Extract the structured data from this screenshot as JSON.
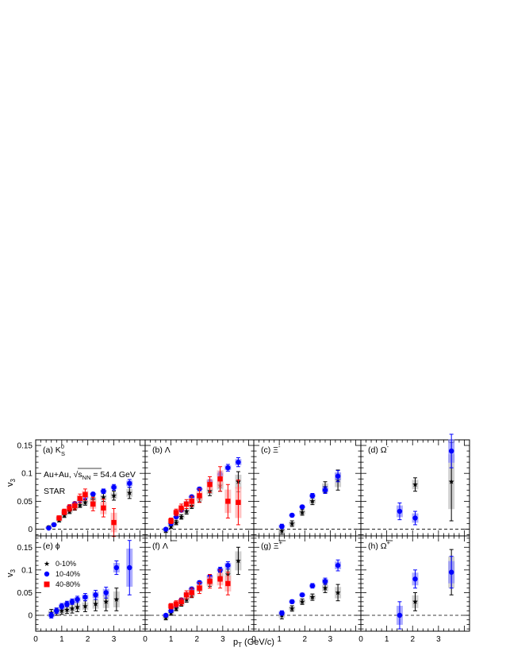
{
  "figure": {
    "yaxis_label": "v",
    "yaxis_sub": "3",
    "xaxis_label": "p",
    "xaxis_sub": "T",
    "xaxis_unit": "(GeV/c)",
    "info_line1": "Au+Au, ",
    "info_sqrt": "s",
    "info_sqrt_sub": "NN",
    "info_energy": " = 54.4 GeV",
    "info_line2": "STAR",
    "legend": [
      "0-10%",
      "10-40%",
      "40-80%"
    ]
  },
  "colors": {
    "c0_10": "#000000",
    "c10_40": "#0000ff",
    "c40_80": "#ff0000",
    "sys0_10": "#bdbdbd",
    "sys10_40": "#8c8cff",
    "sys40_80": "#ffaaaa"
  },
  "chart_data": [
    {
      "id": "a",
      "tag": "(a)",
      "particle": "K",
      "particle_sup": "0",
      "particle_sub": "S",
      "overline": false,
      "type": "scatter",
      "xlim": [
        0,
        4.2
      ],
      "ylim": [
        -0.012,
        0.16
      ],
      "series": [
        {
          "name": "0-10%",
          "x": [
            0.5,
            0.7,
            0.9,
            1.1,
            1.3,
            1.5,
            1.7,
            1.9,
            2.2,
            2.6,
            3.0,
            3.6
          ],
          "y": [
            0.003,
            0.008,
            0.016,
            0.025,
            0.032,
            0.038,
            0.043,
            0.048,
            0.053,
            0.057,
            0.06,
            0.065
          ],
          "err": [
            0.003,
            0.003,
            0.003,
            0.004,
            0.004,
            0.004,
            0.004,
            0.005,
            0.006,
            0.007,
            0.008,
            0.01
          ]
        },
        {
          "name": "10-40%",
          "x": [
            0.5,
            0.7,
            0.9,
            1.1,
            1.3,
            1.5,
            1.7,
            1.9,
            2.2,
            2.6,
            3.0,
            3.6
          ],
          "y": [
            0.002,
            0.008,
            0.02,
            0.03,
            0.04,
            0.046,
            0.052,
            0.057,
            0.063,
            0.068,
            0.075,
            0.082
          ],
          "err": [
            0.002,
            0.002,
            0.002,
            0.002,
            0.002,
            0.002,
            0.002,
            0.003,
            0.003,
            0.004,
            0.005,
            0.007
          ]
        },
        {
          "name": "40-80%",
          "x": [
            0.9,
            1.1,
            1.3,
            1.5,
            1.7,
            1.9,
            2.2,
            2.6,
            3.0
          ],
          "y": [
            0.02,
            0.031,
            0.038,
            0.042,
            0.055,
            0.062,
            0.045,
            0.038,
            0.012
          ],
          "err": [
            0.004,
            0.005,
            0.006,
            0.007,
            0.008,
            0.01,
            0.012,
            0.016,
            0.025
          ]
        }
      ]
    },
    {
      "id": "b",
      "tag": "(b)",
      "particle": "Λ",
      "particle_sup": "",
      "particle_sub": "",
      "overline": false,
      "type": "scatter",
      "xlim": [
        0,
        4.2
      ],
      "ylim": [
        -0.012,
        0.16
      ],
      "series": [
        {
          "name": "0-10%",
          "x": [
            0.8,
            1.0,
            1.2,
            1.4,
            1.6,
            1.8,
            2.1,
            2.5,
            2.9,
            3.6
          ],
          "y": [
            -0.002,
            0.005,
            0.012,
            0.022,
            0.032,
            0.042,
            0.055,
            0.068,
            0.078,
            0.085
          ],
          "err": [
            0.004,
            0.004,
            0.004,
            0.004,
            0.005,
            0.005,
            0.006,
            0.008,
            0.01,
            0.018
          ]
        },
        {
          "name": "10-40%",
          "x": [
            0.8,
            1.0,
            1.2,
            1.4,
            1.6,
            1.8,
            2.1,
            2.5,
            2.9,
            3.2,
            3.6
          ],
          "y": [
            0.0,
            0.01,
            0.022,
            0.034,
            0.046,
            0.058,
            0.072,
            0.085,
            0.098,
            0.11,
            0.12
          ],
          "err": [
            0.002,
            0.002,
            0.002,
            0.002,
            0.002,
            0.003,
            0.003,
            0.004,
            0.005,
            0.006,
            0.008
          ]
        },
        {
          "name": "40-80%",
          "x": [
            1.0,
            1.2,
            1.4,
            1.6,
            1.8,
            2.1,
            2.5,
            2.9,
            3.2,
            3.6
          ],
          "y": [
            0.015,
            0.03,
            0.038,
            0.045,
            0.05,
            0.06,
            0.08,
            0.09,
            0.05,
            0.048
          ],
          "err": [
            0.005,
            0.006,
            0.007,
            0.008,
            0.009,
            0.012,
            0.014,
            0.022,
            0.03,
            0.04
          ]
        }
      ]
    },
    {
      "id": "c",
      "tag": "(c)",
      "particle": "Ξ",
      "particle_sup": "-",
      "particle_sub": "",
      "overline": false,
      "type": "scatter",
      "xlim": [
        0,
        4.2
      ],
      "ylim": [
        -0.012,
        0.16
      ],
      "series": [
        {
          "name": "0-10%",
          "x": [
            1.1,
            1.5,
            1.9,
            2.3,
            2.8,
            3.3
          ],
          "y": [
            -0.003,
            0.01,
            0.03,
            0.05,
            0.075,
            0.088
          ],
          "err": [
            0.006,
            0.005,
            0.005,
            0.006,
            0.01,
            0.018
          ]
        },
        {
          "name": "10-40%",
          "x": [
            1.1,
            1.5,
            1.9,
            2.3,
            2.8,
            3.3
          ],
          "y": [
            0.005,
            0.025,
            0.04,
            0.06,
            0.07,
            0.095
          ],
          "err": [
            0.004,
            0.003,
            0.003,
            0.004,
            0.006,
            0.01
          ]
        }
      ]
    },
    {
      "id": "d",
      "tag": "(d)",
      "particle": "Ω",
      "particle_sup": "-",
      "particle_sub": "",
      "overline": false,
      "type": "scatter",
      "xlim": [
        0,
        4.2
      ],
      "ylim": [
        -0.012,
        0.16
      ],
      "series": [
        {
          "name": "0-10%",
          "x": [
            2.1,
            3.5
          ],
          "y": [
            0.08,
            0.085
          ],
          "err": [
            0.012,
            0.07
          ]
        },
        {
          "name": "10-40%",
          "x": [
            1.5,
            2.1,
            3.5
          ],
          "y": [
            0.032,
            0.02,
            0.14
          ],
          "err": [
            0.015,
            0.012,
            0.03
          ]
        }
      ]
    },
    {
      "id": "e",
      "tag": "(e)",
      "particle": "ϕ",
      "particle_sup": "",
      "particle_sub": "",
      "overline": false,
      "type": "scatter",
      "xlim": [
        0,
        4.2
      ],
      "ylim": [
        -0.035,
        0.175
      ],
      "series": [
        {
          "name": "0-10%",
          "x": [
            0.6,
            0.8,
            1.0,
            1.2,
            1.4,
            1.6,
            1.9,
            2.3,
            2.7,
            3.1
          ],
          "y": [
            0.005,
            0.008,
            0.01,
            0.012,
            0.015,
            0.018,
            0.02,
            0.025,
            0.03,
            0.035
          ],
          "err": [
            0.008,
            0.008,
            0.008,
            0.008,
            0.01,
            0.01,
            0.012,
            0.015,
            0.02,
            0.025
          ]
        },
        {
          "name": "10-40%",
          "x": [
            0.6,
            0.8,
            1.0,
            1.2,
            1.4,
            1.6,
            1.9,
            2.3,
            2.7,
            3.1,
            3.6
          ],
          "y": [
            0.0,
            0.01,
            0.02,
            0.025,
            0.03,
            0.035,
            0.04,
            0.045,
            0.05,
            0.105,
            0.105
          ],
          "err": [
            0.006,
            0.006,
            0.006,
            0.006,
            0.006,
            0.007,
            0.008,
            0.01,
            0.012,
            0.015,
            0.06
          ]
        }
      ]
    },
    {
      "id": "f",
      "tag": "(f)",
      "particle": "Λ",
      "particle_sup": "",
      "particle_sub": "",
      "overline": true,
      "type": "scatter",
      "xlim": [
        0,
        4.2
      ],
      "ylim": [
        -0.035,
        0.175
      ],
      "series": [
        {
          "name": "0-10%",
          "x": [
            0.8,
            1.0,
            1.2,
            1.4,
            1.6,
            1.8,
            2.1,
            2.5,
            2.9,
            3.2,
            3.6
          ],
          "y": [
            -0.005,
            0.005,
            0.015,
            0.025,
            0.035,
            0.045,
            0.06,
            0.072,
            0.085,
            0.09,
            0.12
          ],
          "err": [
            0.005,
            0.005,
            0.005,
            0.005,
            0.006,
            0.006,
            0.007,
            0.008,
            0.01,
            0.02,
            0.03
          ]
        },
        {
          "name": "10-40%",
          "x": [
            0.8,
            1.0,
            1.2,
            1.4,
            1.6,
            1.8,
            2.1,
            2.5,
            2.9,
            3.2
          ],
          "y": [
            0.0,
            0.01,
            0.022,
            0.034,
            0.046,
            0.058,
            0.072,
            0.085,
            0.1,
            0.11
          ],
          "err": [
            0.003,
            0.003,
            0.003,
            0.003,
            0.003,
            0.004,
            0.004,
            0.005,
            0.006,
            0.008
          ]
        },
        {
          "name": "40-80%",
          "x": [
            1.0,
            1.2,
            1.4,
            1.6,
            1.8,
            2.1,
            2.5,
            2.9,
            3.2
          ],
          "y": [
            0.02,
            0.025,
            0.03,
            0.045,
            0.05,
            0.06,
            0.075,
            0.08,
            0.07
          ],
          "err": [
            0.006,
            0.007,
            0.008,
            0.009,
            0.01,
            0.012,
            0.015,
            0.02,
            0.025
          ]
        }
      ]
    },
    {
      "id": "g",
      "tag": "(g)",
      "particle": "Ξ",
      "particle_sup": "+",
      "particle_sub": "",
      "overline": true,
      "type": "scatter",
      "xlim": [
        0,
        4.2
      ],
      "ylim": [
        -0.035,
        0.175
      ],
      "series": [
        {
          "name": "0-10%",
          "x": [
            1.1,
            1.5,
            1.9,
            2.3,
            2.8,
            3.3
          ],
          "y": [
            0.0,
            0.015,
            0.03,
            0.04,
            0.06,
            0.05
          ],
          "err": [
            0.008,
            0.006,
            0.006,
            0.007,
            0.01,
            0.018
          ]
        },
        {
          "name": "10-40%",
          "x": [
            1.1,
            1.5,
            1.9,
            2.3,
            2.8,
            3.3
          ],
          "y": [
            0.005,
            0.03,
            0.045,
            0.065,
            0.075,
            0.11
          ],
          "err": [
            0.005,
            0.004,
            0.004,
            0.005,
            0.007,
            0.012
          ]
        }
      ]
    },
    {
      "id": "h",
      "tag": "(h)",
      "particle": "Ω",
      "particle_sup": "+",
      "particle_sub": "",
      "overline": true,
      "type": "scatter",
      "xlim": [
        0,
        4.2
      ],
      "ylim": [
        -0.035,
        0.175
      ],
      "series": [
        {
          "name": "0-10%",
          "x": [
            2.1,
            3.5
          ],
          "y": [
            0.03,
            0.095
          ],
          "err": [
            0.02,
            0.05
          ]
        },
        {
          "name": "10-40%",
          "x": [
            1.5,
            2.1,
            3.5
          ],
          "y": [
            0.0,
            0.08,
            0.095
          ],
          "err": [
            0.03,
            0.02,
            0.035
          ]
        }
      ]
    }
  ]
}
